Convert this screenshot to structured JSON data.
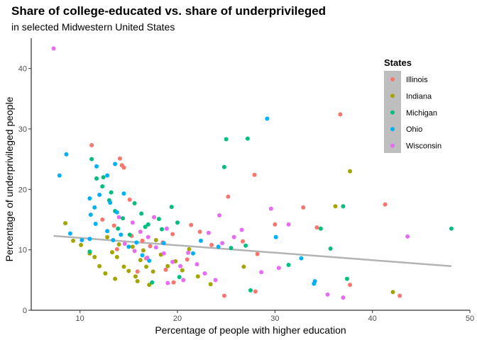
{
  "chart_data": {
    "type": "scatter",
    "title": "Share of college-educated vs. share of underprivileged",
    "subtitle": "in selected Midwestern United States",
    "xlabel": "Percentage of people with higher education",
    "ylabel": "Percentage of underprivileged people",
    "xlim": [
      5,
      50
    ],
    "ylim": [
      0,
      45
    ],
    "x_ticks": [
      10,
      20,
      30,
      40,
      50
    ],
    "y_ticks": [
      0,
      10,
      20,
      30,
      40
    ],
    "grid": false,
    "legend": {
      "title": "States",
      "placement": "top-right",
      "background": "#bebebe"
    },
    "trend_line": {
      "x": [
        7.3,
        48.1
      ],
      "y": [
        12.3,
        7.3
      ],
      "color": "#b3b3b3"
    },
    "series": [
      {
        "name": "Illinois",
        "color": "#F8766D",
        "points": [
          [
            11.2,
            27.3
          ],
          [
            14.1,
            25.1
          ],
          [
            14.3,
            24.0
          ],
          [
            14.5,
            23.6
          ],
          [
            15.1,
            18.3
          ],
          [
            12.3,
            15.0
          ],
          [
            13.5,
            14.0
          ],
          [
            15.3,
            12.3
          ],
          [
            16.4,
            11.5
          ],
          [
            17.2,
            10.6
          ],
          [
            18.5,
            11.2
          ],
          [
            19.5,
            12.6
          ],
          [
            21.4,
            14.1
          ],
          [
            22.3,
            13.0
          ],
          [
            13.8,
            10.1
          ],
          [
            16.8,
            8.6
          ],
          [
            18.8,
            6.7
          ],
          [
            21.0,
            8.4
          ],
          [
            23.5,
            10.8
          ],
          [
            25.2,
            18.8
          ],
          [
            27.9,
            22.4
          ],
          [
            30.0,
            14.2
          ],
          [
            32.9,
            17.0
          ],
          [
            34.3,
            13.7
          ],
          [
            36.7,
            32.4
          ],
          [
            41.3,
            17.5
          ],
          [
            26.7,
            11.4
          ],
          [
            28.2,
            9.3
          ],
          [
            28.0,
            3.1
          ],
          [
            24.8,
            2.4
          ],
          [
            37.7,
            4.2
          ],
          [
            42.8,
            2.4
          ],
          [
            19.6,
            4.6
          ],
          [
            15.9,
            6.4
          ]
        ]
      },
      {
        "name": "Indiana",
        "color": "#A3A500",
        "points": [
          [
            8.5,
            14.4
          ],
          [
            9.3,
            11.5
          ],
          [
            10.1,
            10.8
          ],
          [
            11.0,
            9.4
          ],
          [
            11.5,
            8.8
          ],
          [
            12.0,
            7.3
          ],
          [
            12.6,
            6.1
          ],
          [
            13.3,
            9.6
          ],
          [
            13.8,
            8.8
          ],
          [
            14.5,
            7.2
          ],
          [
            15.0,
            6.5
          ],
          [
            15.7,
            5.6
          ],
          [
            16.2,
            8.3
          ],
          [
            16.8,
            7.2
          ],
          [
            17.5,
            6.4
          ],
          [
            18.3,
            9.2
          ],
          [
            19.0,
            7.3
          ],
          [
            19.8,
            8.1
          ],
          [
            20.5,
            6.6
          ],
          [
            21.2,
            10.1
          ],
          [
            22.1,
            5.6
          ],
          [
            14.0,
            10.9
          ],
          [
            15.4,
            10.5
          ],
          [
            16.5,
            9.9
          ],
          [
            17.8,
            11.6
          ],
          [
            12.8,
            12.1
          ],
          [
            26.8,
            7.2
          ],
          [
            37.7,
            23.0
          ],
          [
            36.2,
            17.2
          ],
          [
            42.1,
            3.0
          ],
          [
            15.9,
            4.8
          ],
          [
            17.1,
            4.2
          ],
          [
            13.6,
            5.2
          ],
          [
            23.4,
            4.3
          ]
        ]
      },
      {
        "name": "Michigan",
        "color": "#00BF7D",
        "points": [
          [
            11.2,
            25.0
          ],
          [
            11.7,
            21.8
          ],
          [
            12.4,
            22.0
          ],
          [
            12.3,
            20.5
          ],
          [
            13.2,
            19.5
          ],
          [
            13.0,
            18.2
          ],
          [
            13.6,
            16.4
          ],
          [
            14.4,
            15.2
          ],
          [
            15.6,
            17.7
          ],
          [
            16.3,
            16.0
          ],
          [
            17.0,
            14.2
          ],
          [
            18.1,
            15.1
          ],
          [
            19.4,
            17.1
          ],
          [
            20.0,
            14.5
          ],
          [
            13.9,
            13.5
          ],
          [
            15.1,
            12.5
          ],
          [
            16.7,
            13.8
          ],
          [
            18.4,
            13.4
          ],
          [
            24.8,
            23.7
          ],
          [
            25.0,
            28.3
          ],
          [
            27.2,
            28.4
          ],
          [
            37.0,
            17.2
          ],
          [
            35.7,
            10.2
          ],
          [
            34.7,
            13.5
          ],
          [
            48.1,
            13.5
          ],
          [
            31.4,
            7.5
          ],
          [
            27.5,
            3.3
          ],
          [
            37.4,
            5.2
          ],
          [
            11.0,
            9.7
          ],
          [
            17.4,
            4.6
          ],
          [
            20.2,
            5.5
          ],
          [
            25.5,
            10.3
          ],
          [
            27.0,
            10.7
          ]
        ]
      },
      {
        "name": "Ohio",
        "color": "#00B0F6",
        "points": [
          [
            7.9,
            22.3
          ],
          [
            8.6,
            25.8
          ],
          [
            11.7,
            23.8
          ],
          [
            12.8,
            22.3
          ],
          [
            13.6,
            24.2
          ],
          [
            11.0,
            18.5
          ],
          [
            11.5,
            17.0
          ],
          [
            12.0,
            19.1
          ],
          [
            13.1,
            17.8
          ],
          [
            13.8,
            16.2
          ],
          [
            14.5,
            19.3
          ],
          [
            11.1,
            15.8
          ],
          [
            11.6,
            14.3
          ],
          [
            12.8,
            13.1
          ],
          [
            13.4,
            11.6
          ],
          [
            14.2,
            12.5
          ],
          [
            15.0,
            10.5
          ],
          [
            15.8,
            11.2
          ],
          [
            16.4,
            9.1
          ],
          [
            17.1,
            8.2
          ],
          [
            9.0,
            12.7
          ],
          [
            10.2,
            11.6
          ],
          [
            11.0,
            11.8
          ],
          [
            29.2,
            31.7
          ],
          [
            30.1,
            12.1
          ],
          [
            32.7,
            8.6
          ],
          [
            34.0,
            4.4
          ],
          [
            34.1,
            4.8
          ],
          [
            24.2,
            10.5
          ],
          [
            21.6,
            9.4
          ],
          [
            18.6,
            11.1
          ],
          [
            22.4,
            11.5
          ]
        ]
      },
      {
        "name": "Wisconsin",
        "color": "#E76BF3",
        "points": [
          [
            7.3,
            43.3
          ],
          [
            14.0,
            15.4
          ],
          [
            15.4,
            14.5
          ],
          [
            16.2,
            13.0
          ],
          [
            17.0,
            12.1
          ],
          [
            17.8,
            10.4
          ],
          [
            18.6,
            9.4
          ],
          [
            19.5,
            8.0
          ],
          [
            20.3,
            7.3
          ],
          [
            21.1,
            9.5
          ],
          [
            22.0,
            7.6
          ],
          [
            22.8,
            6.1
          ],
          [
            23.9,
            5.0
          ],
          [
            24.6,
            11.1
          ],
          [
            25.8,
            12.1
          ],
          [
            26.6,
            13.3
          ],
          [
            29.6,
            16.8
          ],
          [
            31.4,
            14.2
          ],
          [
            35.4,
            2.6
          ],
          [
            37.0,
            2.1
          ],
          [
            43.6,
            12.2
          ],
          [
            19.0,
            4.5
          ],
          [
            20.6,
            5.0
          ],
          [
            15.6,
            9.8
          ],
          [
            16.9,
            8.7
          ],
          [
            14.6,
            11.0
          ],
          [
            23.2,
            12.8
          ],
          [
            28.6,
            6.3
          ],
          [
            30.4,
            7.0
          ],
          [
            17.6,
            15.4
          ],
          [
            18.9,
            13.5
          ],
          [
            24.3,
            15.7
          ]
        ]
      }
    ]
  }
}
